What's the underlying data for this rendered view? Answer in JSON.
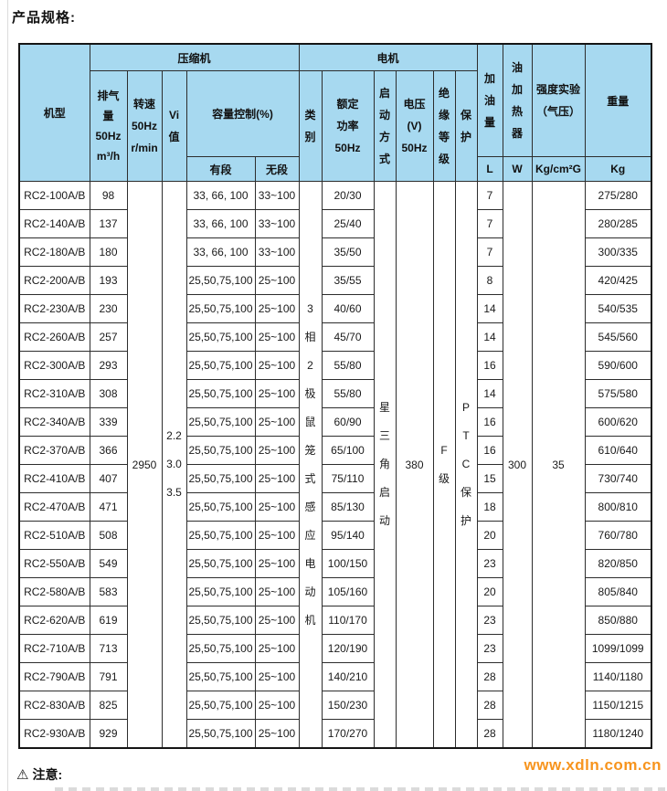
{
  "page": {
    "title": "产品规格:"
  },
  "table": {
    "header": {
      "model": "机型",
      "compressor_group": "压缩机",
      "motor_group": "电机",
      "displacement": "排气\n量\n50Hz\nm³/h",
      "speed": "转速\n50Hz\nr/min",
      "vi": "Vi\n值",
      "capacity_control": "容量控制(%)",
      "staged": "有段",
      "stepless": "无段",
      "category": "类\n别",
      "rated_power": "额定\n功率\n50Hz",
      "start_mode": "启\n动\n方\n式",
      "voltage": "电压\n(V)\n50Hz",
      "insulation": "绝\n缘\n等\n级",
      "protection": "保\n护",
      "oil_charge": "加\n油\n量",
      "oil_heater": "油\n加\n热\n器",
      "strength_test": "强度实验\n（气压）",
      "weight": "重量",
      "unit_oil": "L",
      "unit_heater": "W",
      "unit_strength": "Kg/cm²G",
      "unit_weight": "Kg"
    },
    "merged": {
      "speed": "2950",
      "vi": "2.2\n3.0\n3.5",
      "category": "3\n相\n2\n极\n鼠\n笼\n式\n感\n应\n电\n动\n机",
      "start_mode": "星\n三\n角\n启\n动",
      "voltage": "380",
      "insulation": "F\n级",
      "protection": "P\nT\nC\n保\n护",
      "oil_heater": "300",
      "strength_test": "35"
    },
    "rows": [
      {
        "model": "RC2-100A/B",
        "disp": "98",
        "staged": "33, 66, 100",
        "stepless": "33~100",
        "power": "20/30",
        "oil": "7",
        "weight": "275/280"
      },
      {
        "model": "RC2-140A/B",
        "disp": "137",
        "staged": "33, 66, 100",
        "stepless": "33~100",
        "power": "25/40",
        "oil": "7",
        "weight": "280/285"
      },
      {
        "model": "RC2-180A/B",
        "disp": "180",
        "staged": "33, 66, 100",
        "stepless": "33~100",
        "power": "35/50",
        "oil": "7",
        "weight": "300/335"
      },
      {
        "model": "RC2-200A/B",
        "disp": "193",
        "staged": "25,50,75,100",
        "stepless": "25~100",
        "power": "35/55",
        "oil": "8",
        "weight": "420/425"
      },
      {
        "model": "RC2-230A/B",
        "disp": "230",
        "staged": "25,50,75,100",
        "stepless": "25~100",
        "power": "40/60",
        "oil": "14",
        "weight": "540/535"
      },
      {
        "model": "RC2-260A/B",
        "disp": "257",
        "staged": "25,50,75,100",
        "stepless": "25~100",
        "power": "45/70",
        "oil": "14",
        "weight": "545/560"
      },
      {
        "model": "RC2-300A/B",
        "disp": "293",
        "staged": "25,50,75,100",
        "stepless": "25~100",
        "power": "55/80",
        "oil": "16",
        "weight": "590/600"
      },
      {
        "model": "RC2-310A/B",
        "disp": "308",
        "staged": "25,50,75,100",
        "stepless": "25~100",
        "power": "55/80",
        "oil": "14",
        "weight": "575/580"
      },
      {
        "model": "RC2-340A/B",
        "disp": "339",
        "staged": "25,50,75,100",
        "stepless": "25~100",
        "power": "60/90",
        "oil": "16",
        "weight": "600/620"
      },
      {
        "model": "RC2-370A/B",
        "disp": "366",
        "staged": "25,50,75,100",
        "stepless": "25~100",
        "power": "65/100",
        "oil": "16",
        "weight": "610/640"
      },
      {
        "model": "RC2-410A/B",
        "disp": "407",
        "staged": "25,50,75,100",
        "stepless": "25~100",
        "power": "75/110",
        "oil": "15",
        "weight": "730/740"
      },
      {
        "model": "RC2-470A/B",
        "disp": "471",
        "staged": "25,50,75,100",
        "stepless": "25~100",
        "power": "85/130",
        "oil": "18",
        "weight": "800/810"
      },
      {
        "model": "RC2-510A/B",
        "disp": "508",
        "staged": "25,50,75,100",
        "stepless": "25~100",
        "power": "95/140",
        "oil": "20",
        "weight": "760/780"
      },
      {
        "model": "RC2-550A/B",
        "disp": "549",
        "staged": "25,50,75,100",
        "stepless": "25~100",
        "power": "100/150",
        "oil": "23",
        "weight": "820/850"
      },
      {
        "model": "RC2-580A/B",
        "disp": "583",
        "staged": "25,50,75,100",
        "stepless": "25~100",
        "power": "105/160",
        "oil": "20",
        "weight": "805/840"
      },
      {
        "model": "RC2-620A/B",
        "disp": "619",
        "staged": "25,50,75,100",
        "stepless": "25~100",
        "power": "110/170",
        "oil": "23",
        "weight": "850/880"
      },
      {
        "model": "RC2-710A/B",
        "disp": "713",
        "staged": "25,50,75,100",
        "stepless": "25~100",
        "power": "120/190",
        "oil": "23",
        "weight": "1099/1099"
      },
      {
        "model": "RC2-790A/B",
        "disp": "791",
        "staged": "25,50,75,100",
        "stepless": "25~100",
        "power": "140/210",
        "oil": "28",
        "weight": "1140/1180"
      },
      {
        "model": "RC2-830A/B",
        "disp": "825",
        "staged": "25,50,75,100",
        "stepless": "25~100",
        "power": "150/230",
        "oil": "28",
        "weight": "1150/1215"
      },
      {
        "model": "RC2-930A/B",
        "disp": "929",
        "staged": "25,50,75,100",
        "stepless": "25~100",
        "power": "170/270",
        "oil": "28",
        "weight": "1180/1240"
      }
    ]
  },
  "footer": {
    "notice": "注意:",
    "url": "www.xdln.com.cn"
  },
  "colors": {
    "header_blue": "#a7d9f0",
    "link_orange": "#f7941d",
    "border_dark": "#2d2d2d"
  }
}
